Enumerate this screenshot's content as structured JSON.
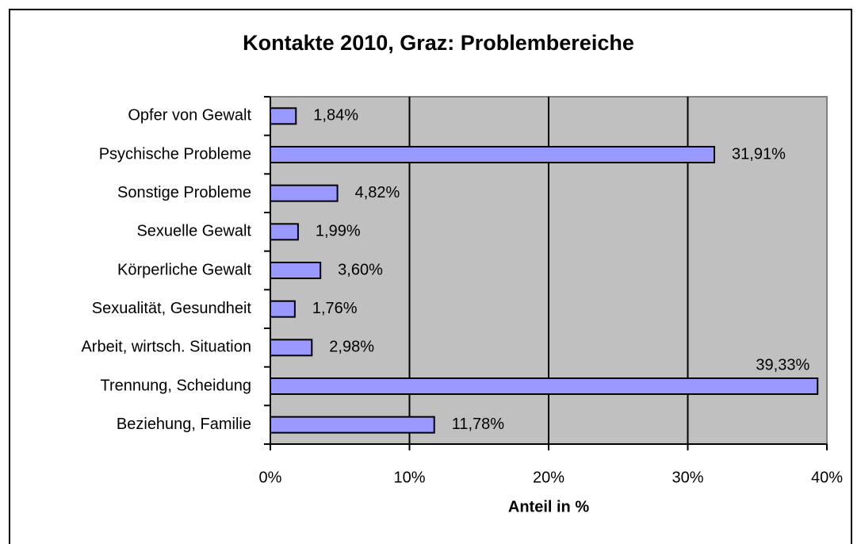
{
  "chart_data": {
    "type": "barh",
    "title": "Kontakte 2010, Graz: Problembereiche",
    "x_label": "Anteil in %",
    "categories": [
      "Opfer von Gewalt",
      "Psychische Probleme",
      "Sonstige Probleme",
      "Sexuelle Gewalt",
      "Körperliche Gewalt",
      "Sexualität, Gesundheit",
      "Arbeit, wirtsch. Situation",
      "Trennung,  Scheidung",
      "Beziehung, Familie"
    ],
    "values": [
      1.84,
      31.91,
      4.82,
      1.99,
      3.6,
      1.76,
      2.98,
      39.33,
      11.78
    ],
    "value_labels": [
      "1,84%",
      "31,91%",
      "4,82%",
      "1,99%",
      "3,60%",
      "1,76%",
      "2,98%",
      "39,33%",
      "11,78%"
    ],
    "color": "#9999ff",
    "xlim": [
      0,
      40
    ],
    "xticks": [
      {
        "value": 0,
        "label": "0%"
      },
      {
        "value": 10,
        "label": "10%"
      },
      {
        "value": 20,
        "label": "20%"
      },
      {
        "value": 30,
        "label": "30%"
      },
      {
        "value": 40,
        "label": "40%"
      }
    ],
    "grid": true
  }
}
